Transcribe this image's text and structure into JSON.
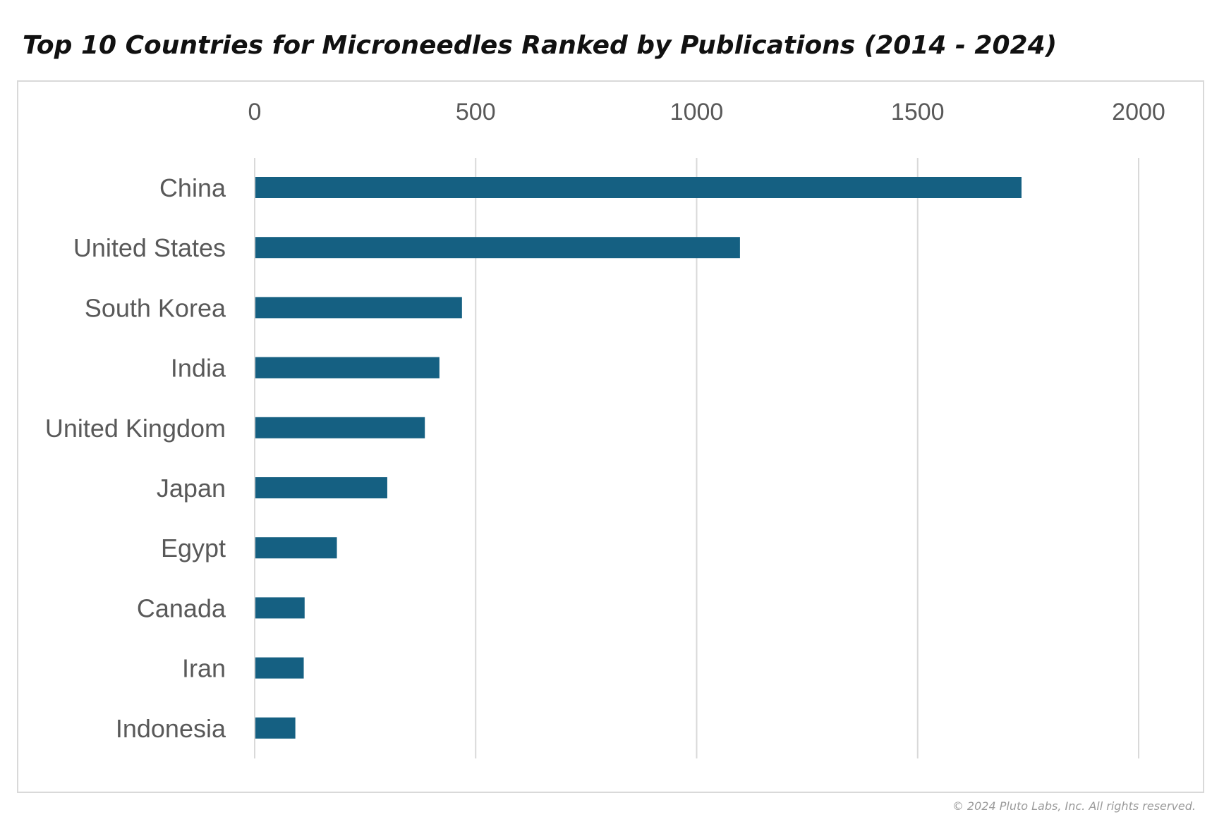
{
  "chart_data": {
    "type": "bar",
    "orientation": "horizontal",
    "title": "Top 10 Countries for Microneedles Ranked by Publications (2014 - 2024)",
    "categories": [
      "China",
      "United States",
      "South Korea",
      "India",
      "United Kingdom",
      "Japan",
      "Egypt",
      "Canada",
      "Iran",
      "Indonesia"
    ],
    "values": [
      1735,
      1098,
      469,
      418,
      385,
      300,
      186,
      113,
      111,
      92
    ],
    "xlim": [
      0,
      2000
    ],
    "xticks": [
      "0",
      "500",
      "1000",
      "1500",
      "2000"
    ],
    "xaxis_position": "top",
    "grid": true,
    "legend": "none",
    "bar_color": "#156082",
    "grid_color": "#d9d9d9"
  },
  "footer": {
    "copyright": "© 2024 Pluto Labs, Inc. All rights reserved."
  }
}
